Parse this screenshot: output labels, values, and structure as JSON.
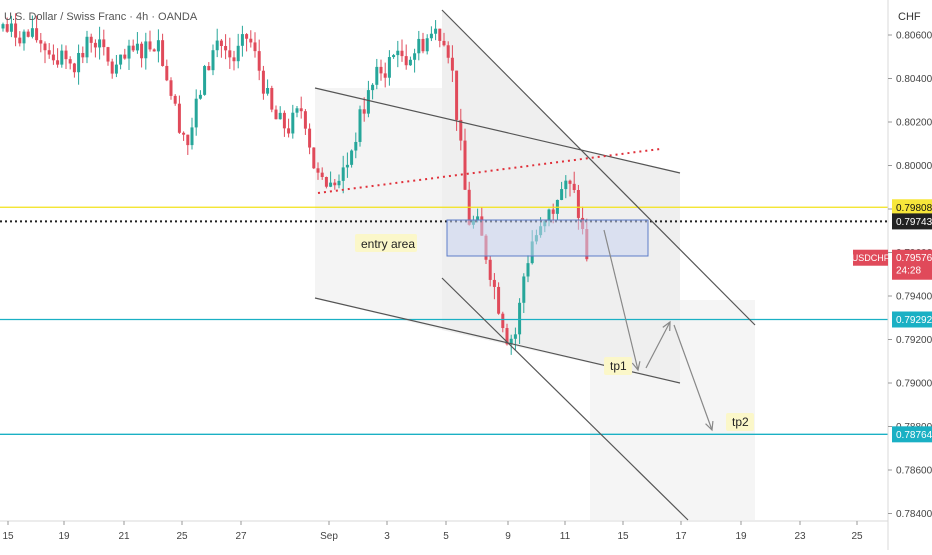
{
  "header": {
    "title": "U.S. Dollar / Swiss Franc · 4h · OANDA",
    "currency": "CHF"
  },
  "colors": {
    "up": "#26a69a",
    "down": "#e04a5a",
    "support_line": "#1ab0c4",
    "resistance_line": "#f2e21a",
    "channel": "#555555",
    "dotted_red": "#e0303a",
    "entry_box": "#5c7cc8"
  },
  "chart_data": {
    "type": "candlestick",
    "symbol": "USDCHF",
    "timeframe": "4h",
    "y_axis": {
      "range": [
        0.7836,
        0.8072
      ],
      "ticks": [
        "0.80600",
        "0.80400",
        "0.80200",
        "0.80000",
        "0.79800",
        "0.79600",
        "0.79400",
        "0.79200",
        "0.79000",
        "0.78800",
        "0.78600",
        "0.78400"
      ]
    },
    "x_axis": {
      "ticks": [
        "15",
        "19",
        "21",
        "25",
        "27",
        "Sep",
        "3",
        "5",
        "9",
        "11",
        "15",
        "17",
        "19",
        "23",
        "25"
      ]
    },
    "price_labels": [
      {
        "value": "0.79808",
        "kind": "level-yellow"
      },
      {
        "value": "0.79743",
        "kind": "level-dotted"
      },
      {
        "value": "0.79576",
        "symbol": "USDCHF",
        "countdown": "24:28",
        "kind": "current"
      },
      {
        "value": "0.79292",
        "kind": "level-cyan"
      },
      {
        "value": "0.78764",
        "kind": "level-cyan"
      }
    ],
    "horizontal_levels": [
      {
        "price": 0.79808,
        "style": "solid",
        "color": "yellow"
      },
      {
        "price": 0.79743,
        "style": "dotted",
        "color": "black"
      },
      {
        "price": 0.79292,
        "style": "solid",
        "color": "cyan"
      },
      {
        "price": 0.78764,
        "style": "solid",
        "color": "cyan"
      }
    ],
    "annotations": [
      "entry area",
      "tp1",
      "tp2"
    ]
  }
}
